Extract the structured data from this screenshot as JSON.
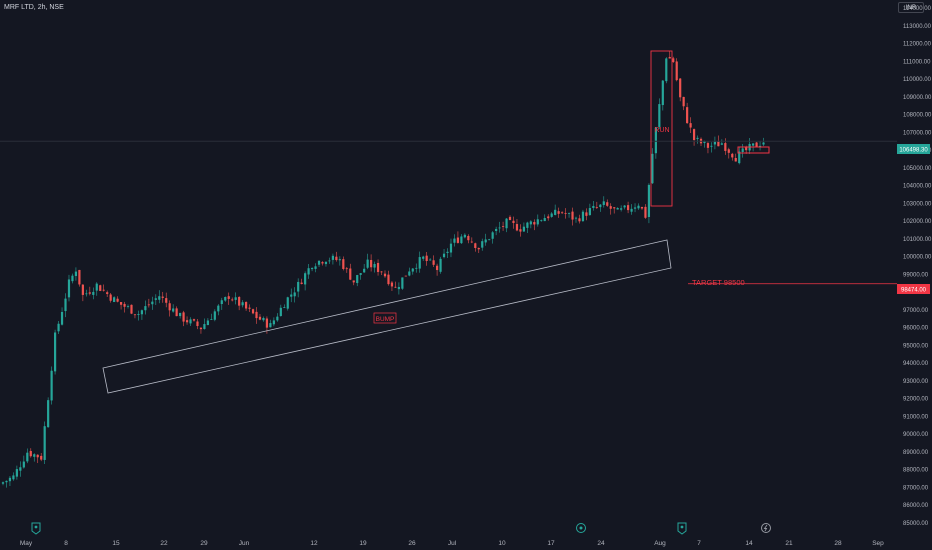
{
  "header": {
    "title": "MRF LTD, 2h, NSE",
    "currency": "INR"
  },
  "colors": {
    "background": "#141722",
    "up": "#26a69a",
    "down": "#ef5350",
    "annotation_red": "#f23645",
    "price_line": "#2a2e39"
  },
  "chart_data": {
    "type": "candlestick",
    "title": "MRF LTD, 2h, NSE",
    "y_axis": {
      "min": 85000,
      "max": 114000,
      "side": "right",
      "grid": false,
      "ticks": [
        "114000.00",
        "113000.00",
        "112000.00",
        "111000.00",
        "110000.00",
        "109000.00",
        "108000.00",
        "107000.00",
        "106000.00",
        "105000.00",
        "104000.00",
        "103000.00",
        "102000.00",
        "101000.00",
        "100000.00",
        "99000.00",
        "98000.00",
        "97000.00",
        "96000.00",
        "95000.00",
        "94000.00",
        "93000.00",
        "92000.00",
        "91000.00",
        "90000.00",
        "89000.00",
        "88000.00",
        "87000.00",
        "86000.00",
        "85000.00"
      ]
    },
    "x_axis": {
      "labels": [
        "May",
        "8",
        "15",
        "22",
        "29",
        "Jun",
        "12",
        "19",
        "26",
        "Jul",
        "10",
        "17",
        "24",
        "Aug",
        "7",
        "14",
        "21",
        "28",
        "Sep"
      ]
    },
    "last_price": 106498.3,
    "last_price_label": "106498.30",
    "target_price": 98474.0,
    "target_price_label": "98474.00",
    "price_path": [
      [
        0,
        87200
      ],
      [
        2,
        87600
      ],
      [
        4,
        89000
      ],
      [
        6,
        88700
      ],
      [
        8,
        95500
      ],
      [
        10,
        98500
      ],
      [
        11,
        99300
      ],
      [
        12,
        97800
      ],
      [
        14,
        98400
      ],
      [
        17,
        97400
      ],
      [
        20,
        96800
      ],
      [
        23,
        97800
      ],
      [
        26,
        96600
      ],
      [
        29,
        96000
      ],
      [
        31,
        96900
      ],
      [
        33,
        97800
      ],
      [
        35,
        97200
      ],
      [
        37,
        96600
      ],
      [
        39,
        96100
      ],
      [
        41,
        97400
      ],
      [
        43,
        98400
      ],
      [
        45,
        99600
      ],
      [
        47,
        99900
      ],
      [
        49,
        99800
      ],
      [
        51,
        98600
      ],
      [
        53,
        99600
      ],
      [
        55,
        99200
      ],
      [
        57,
        98200
      ],
      [
        59,
        99300
      ],
      [
        61,
        99900
      ],
      [
        63,
        99300
      ],
      [
        65,
        100700
      ],
      [
        67,
        101300
      ],
      [
        69,
        100500
      ],
      [
        71,
        101300
      ],
      [
        73,
        101900
      ],
      [
        75,
        101600
      ],
      [
        77,
        102000
      ],
      [
        79,
        102300
      ],
      [
        81,
        102500
      ],
      [
        83,
        102100
      ],
      [
        85,
        102600
      ],
      [
        87,
        102900
      ],
      [
        89,
        102500
      ],
      [
        91,
        102800
      ],
      [
        92,
        103000
      ],
      [
        93,
        102300
      ],
      [
        94,
        105800
      ],
      [
        95,
        108500
      ],
      [
        96,
        111300
      ],
      [
        97,
        111000
      ],
      [
        98,
        108900
      ],
      [
        99,
        107700
      ],
      [
        100,
        106600
      ],
      [
        102,
        106200
      ],
      [
        104,
        106400
      ],
      [
        106,
        105600
      ],
      [
        108,
        106100
      ],
      [
        110,
        106500
      ]
    ],
    "annotations": {
      "bump_label": "BUMP",
      "run_label": "RUN",
      "target_label": "TARGET 98500"
    }
  }
}
